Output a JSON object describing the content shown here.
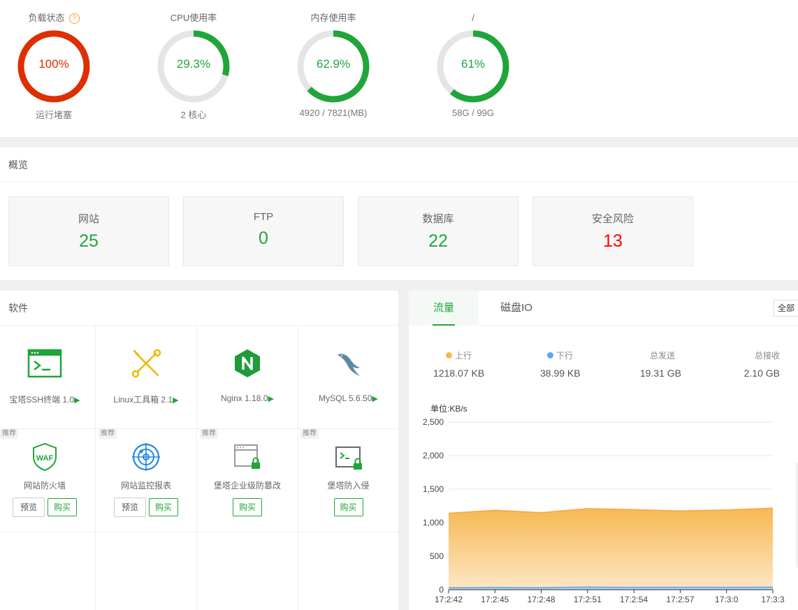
{
  "status": {
    "load": {
      "title": "负载状态",
      "help": "?",
      "value": "100%",
      "percent": 100,
      "sub": "运行堵塞",
      "color": "#dd2f00"
    },
    "cpu": {
      "title": "CPU使用率",
      "value": "29.3%",
      "percent": 29.3,
      "sub": "2 核心",
      "color": "#20a53a"
    },
    "memory": {
      "title": "内存使用率",
      "value": "62.9%",
      "percent": 62.9,
      "sub": "4920 / 7821(MB)",
      "color": "#20a53a"
    },
    "disk": {
      "title": "/",
      "value": "61%",
      "percent": 61,
      "sub": "58G / 99G",
      "color": "#20a53a"
    }
  },
  "overview": {
    "title": "概览",
    "cards": [
      {
        "label": "网站",
        "value": "25"
      },
      {
        "label": "FTP",
        "value": "0"
      },
      {
        "label": "数据库",
        "value": "22"
      },
      {
        "label": "安全风险",
        "value": "13",
        "danger_color": "#ff0000"
      }
    ]
  },
  "software": {
    "title": "软件",
    "installed": [
      {
        "name": "宝塔SSH终端 1.0",
        "icon": "terminal-icon"
      },
      {
        "name": "Linux工具箱 2.1",
        "icon": "tools-icon"
      },
      {
        "name": "Nginx 1.18.0",
        "icon": "nginx-icon"
      },
      {
        "name": "MySQL 5.6.50",
        "icon": "mysql-icon"
      }
    ],
    "play_glyph": "▶",
    "recommended_tag": "推荐",
    "recommended": [
      {
        "name": "网站防火墙",
        "icon": "waf-icon",
        "icon_text": "WAF",
        "preview": "预览",
        "buy": "购买"
      },
      {
        "name": "网站监控报表",
        "icon": "monitor-radar-icon",
        "preview": "预览",
        "buy": "购买"
      },
      {
        "name": "堡塔企业级防篡改",
        "icon": "tamper-proof-icon",
        "buy": "购买"
      },
      {
        "name": "堡塔防入侵",
        "icon": "intrusion-prevention-icon",
        "buy": "购买"
      }
    ]
  },
  "traffic": {
    "tabs": [
      "流量",
      "磁盘IO"
    ],
    "select_all": "全部",
    "stats": [
      {
        "label": "上行",
        "value": "1218.07 KB",
        "dot_color": "#f7b851"
      },
      {
        "label": "下行",
        "value": "38.99 KB",
        "dot_color": "#52a9ff"
      },
      {
        "label": "总发送",
        "value": "19.31 GB"
      },
      {
        "label": "总接收",
        "value": "2.10 GB"
      }
    ],
    "unit": "单位:KB/s"
  },
  "chart_data": {
    "type": "area",
    "title": "",
    "ylabel": "单位:KB/s",
    "ylim": [
      0,
      2500
    ],
    "yticks": [
      "2,500",
      "2,000",
      "1,500",
      "1,000",
      "500",
      "0"
    ],
    "ytick_values": [
      2500,
      2000,
      1500,
      1000,
      500,
      0
    ],
    "x": [
      "17:2:42",
      "17:2:45",
      "17:2:48",
      "17:2:51",
      "17:2:54",
      "17:2:57",
      "17:3:0",
      "17:3:3"
    ],
    "grid": true,
    "series": [
      {
        "name": "上行",
        "color": "#f7b851",
        "values": [
          1140,
          1185,
          1150,
          1210,
          1195,
          1175,
          1190,
          1218
        ]
      },
      {
        "name": "下行",
        "color": "#52a9ff",
        "values": [
          30,
          35,
          32,
          40,
          36,
          38,
          37,
          39
        ]
      }
    ]
  }
}
